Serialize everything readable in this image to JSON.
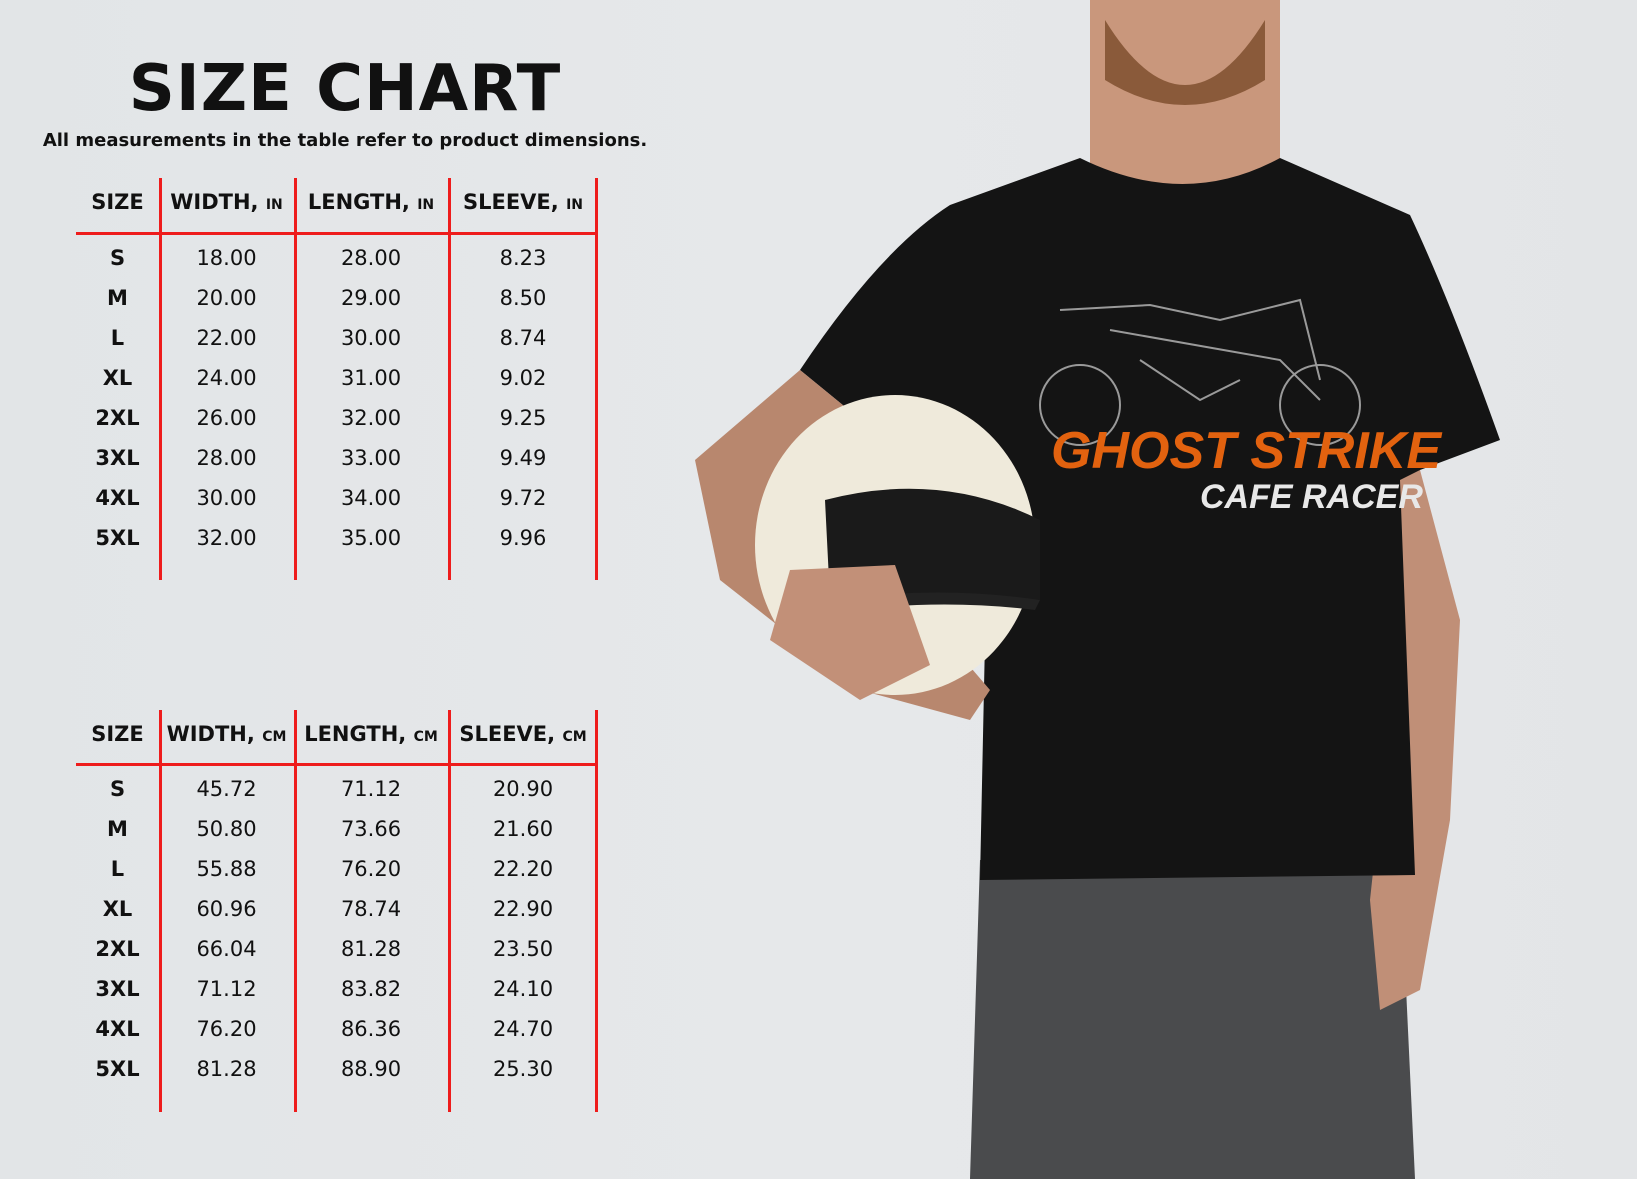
{
  "title": "SIZE CHART",
  "subtitle": "All measurements in the table refer to product dimensions.",
  "colors": {
    "divider": "#ee1c1c",
    "print_orange": "#e2620f",
    "shirt": "#141414",
    "background": "#e4e6e8"
  },
  "tables": [
    {
      "headers": [
        {
          "label": "SIZE",
          "unit": ""
        },
        {
          "label": "WIDTH,",
          "unit": "IN"
        },
        {
          "label": "LENGTH,",
          "unit": "IN"
        },
        {
          "label": "SLEEVE,",
          "unit": "IN"
        }
      ],
      "rows": [
        [
          "S",
          "18.00",
          "28.00",
          "8.23"
        ],
        [
          "M",
          "20.00",
          "29.00",
          "8.50"
        ],
        [
          "L",
          "22.00",
          "30.00",
          "8.74"
        ],
        [
          "XL",
          "24.00",
          "31.00",
          "9.02"
        ],
        [
          "2XL",
          "26.00",
          "32.00",
          "9.25"
        ],
        [
          "3XL",
          "28.00",
          "33.00",
          "9.49"
        ],
        [
          "4XL",
          "30.00",
          "34.00",
          "9.72"
        ],
        [
          "5XL",
          "32.00",
          "35.00",
          "9.96"
        ]
      ]
    },
    {
      "headers": [
        {
          "label": "SIZE",
          "unit": ""
        },
        {
          "label": "WIDTH,",
          "unit": "CM"
        },
        {
          "label": "LENGTH,",
          "unit": "CM"
        },
        {
          "label": "SLEEVE,",
          "unit": "CM"
        }
      ],
      "rows": [
        [
          "S",
          "45.72",
          "71.12",
          "20.90"
        ],
        [
          "M",
          "50.80",
          "73.66",
          "21.60"
        ],
        [
          "L",
          "55.88",
          "76.20",
          "22.20"
        ],
        [
          "XL",
          "60.96",
          "78.74",
          "22.90"
        ],
        [
          "2XL",
          "66.04",
          "81.28",
          "23.50"
        ],
        [
          "3XL",
          "71.12",
          "83.82",
          "24.10"
        ],
        [
          "4XL",
          "76.20",
          "86.36",
          "24.70"
        ],
        [
          "5XL",
          "81.28",
          "88.90",
          "25.30"
        ]
      ]
    }
  ],
  "shirt_print": {
    "line1": "GHOST STRIKE",
    "line2": "CAFE RACER"
  }
}
